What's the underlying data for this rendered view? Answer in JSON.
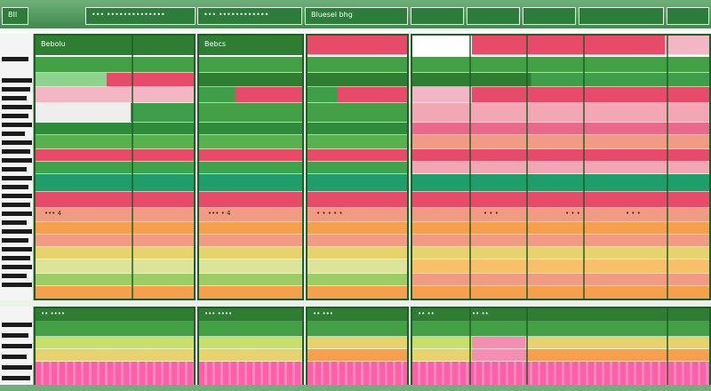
{
  "toolbar": {
    "tabs": [
      "BII",
      "••• ••••••••••••••",
      "••• ••••••••••••",
      "Bluesel bhg"
    ]
  },
  "panels": [
    {
      "title": "Bebolu"
    },
    {
      "title": "Bebcs"
    },
    {
      "title": ""
    }
  ],
  "row_labels": [
    "••• 4",
    "••• • 4",
    "• • • • •",
    "• • •",
    "• • •",
    "• • •"
  ],
  "lower_labels": [
    "•• ••••",
    "••• ••••",
    "•• •••",
    "•• ••",
    "•• ••"
  ],
  "colors": {
    "green_dark": "#2e7d32",
    "green_mid": "#43a047",
    "green_light": "#9ccc65",
    "red": "#e84a6a",
    "pink": "#f48fb1",
    "orange": "#f6a04d",
    "yellow": "#e6d36e",
    "salmon": "#f19a84"
  }
}
